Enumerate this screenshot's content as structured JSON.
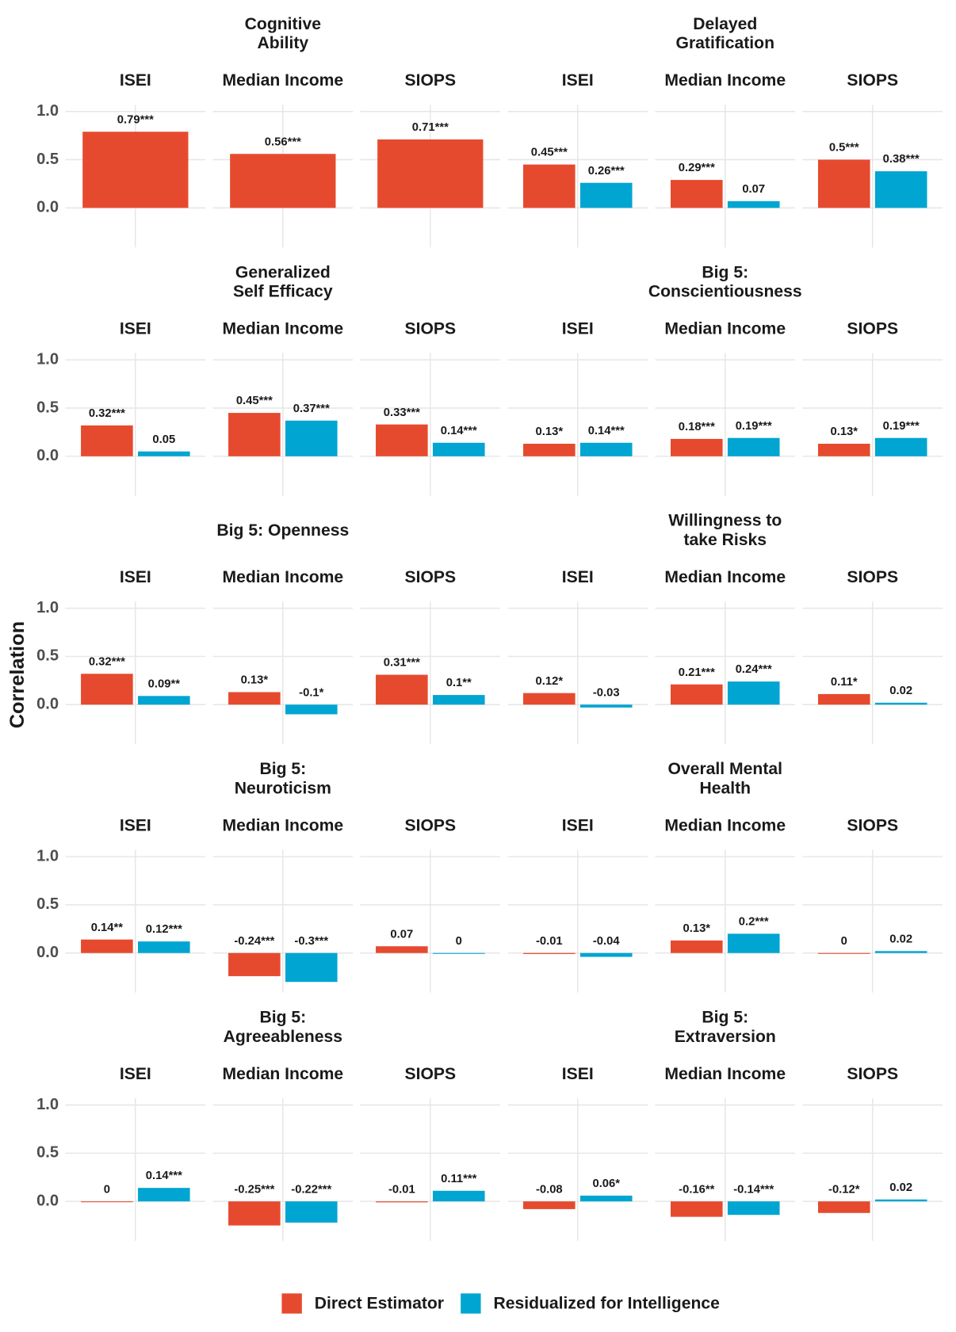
{
  "chart_data": {
    "type": "bar",
    "y_label": "Correlation",
    "ylim": [
      -0.41,
      1.07
    ],
    "yticks": [
      {
        "value": 0,
        "label": "0.0"
      },
      {
        "value": 0.5,
        "label": "0.5"
      },
      {
        "value": 1,
        "label": "1.0"
      }
    ],
    "grid": true,
    "legend": "bottom",
    "facets": [
      "ISEI",
      "Median Income",
      "SIOPS"
    ],
    "series": [
      {
        "name": "Direct Estimator",
        "color": "#e64a2e"
      },
      {
        "name": "Residualized for Intelligence",
        "color": "#00a5d1"
      }
    ],
    "panels": [
      {
        "title": [
          "Cognitive",
          "Ability"
        ],
        "values": [
          [
            0.79,
            null
          ],
          [
            0.56,
            null
          ],
          [
            0.71,
            null
          ]
        ],
        "value_labels": [
          [
            "0.79***",
            null
          ],
          [
            "0.56***",
            null
          ],
          [
            "0.71***",
            null
          ]
        ]
      },
      {
        "title": [
          "Delayed",
          "Gratification"
        ],
        "values": [
          [
            0.45,
            0.26
          ],
          [
            0.29,
            0.07
          ],
          [
            0.5,
            0.38
          ]
        ],
        "value_labels": [
          [
            "0.45***",
            "0.26***"
          ],
          [
            "0.29***",
            "0.07"
          ],
          [
            "0.5***",
            "0.38***"
          ]
        ]
      },
      {
        "title": [
          "Generalized",
          "Self Efficacy"
        ],
        "values": [
          [
            0.32,
            0.05
          ],
          [
            0.45,
            0.37
          ],
          [
            0.33,
            0.14
          ]
        ],
        "value_labels": [
          [
            "0.32***",
            "0.05"
          ],
          [
            "0.45***",
            "0.37***"
          ],
          [
            "0.33***",
            "0.14***"
          ]
        ]
      },
      {
        "title": [
          "Big 5:",
          "Conscientiousness"
        ],
        "values": [
          [
            0.13,
            0.14
          ],
          [
            0.18,
            0.19
          ],
          [
            0.13,
            0.19
          ]
        ],
        "value_labels": [
          [
            "0.13*",
            "0.14***"
          ],
          [
            "0.18***",
            "0.19***"
          ],
          [
            "0.13*",
            "0.19***"
          ]
        ]
      },
      {
        "title": [
          "Big 5: Openness"
        ],
        "values": [
          [
            0.32,
            0.09
          ],
          [
            0.13,
            -0.1
          ],
          [
            0.31,
            0.1
          ]
        ],
        "value_labels": [
          [
            "0.32***",
            "0.09**"
          ],
          [
            "0.13*",
            "-0.1*"
          ],
          [
            "0.31***",
            "0.1**"
          ]
        ]
      },
      {
        "title": [
          "Willingness to",
          "take Risks"
        ],
        "values": [
          [
            0.12,
            -0.03
          ],
          [
            0.21,
            0.24
          ],
          [
            0.11,
            0.02
          ]
        ],
        "value_labels": [
          [
            "0.12*",
            "-0.03"
          ],
          [
            "0.21***",
            "0.24***"
          ],
          [
            "0.11*",
            "0.02"
          ]
        ]
      },
      {
        "title": [
          "Big 5:",
          "Neuroticism"
        ],
        "values": [
          [
            0.14,
            0.12
          ],
          [
            -0.24,
            -0.3
          ],
          [
            0.07,
            0
          ]
        ],
        "value_labels": [
          [
            "0.14**",
            "0.12***"
          ],
          [
            "-0.24***",
            "-0.3***"
          ],
          [
            "0.07",
            "0"
          ]
        ]
      },
      {
        "title": [
          "Overall Mental",
          "Health"
        ],
        "values": [
          [
            -0.01,
            -0.04
          ],
          [
            0.13,
            0.2
          ],
          [
            0,
            0.02
          ]
        ],
        "value_labels": [
          [
            "-0.01",
            "-0.04"
          ],
          [
            "0.13*",
            "0.2***"
          ],
          [
            "0",
            "0.02"
          ]
        ]
      },
      {
        "title": [
          "Big 5:",
          "Agreeableness"
        ],
        "values": [
          [
            0,
            0.14
          ],
          [
            -0.25,
            -0.22
          ],
          [
            -0.01,
            0.11
          ]
        ],
        "value_labels": [
          [
            "0",
            "0.14***"
          ],
          [
            "-0.25***",
            "-0.22***"
          ],
          [
            "-0.01",
            "0.11***"
          ]
        ]
      },
      {
        "title": [
          "Big 5:",
          "Extraversion"
        ],
        "values": [
          [
            -0.08,
            0.06
          ],
          [
            -0.16,
            -0.14
          ],
          [
            -0.12,
            0.02
          ]
        ],
        "value_labels": [
          [
            "-0.08",
            "0.06*"
          ],
          [
            "-0.16**",
            "-0.14***"
          ],
          [
            "-0.12*",
            "0.02"
          ]
        ]
      }
    ]
  }
}
